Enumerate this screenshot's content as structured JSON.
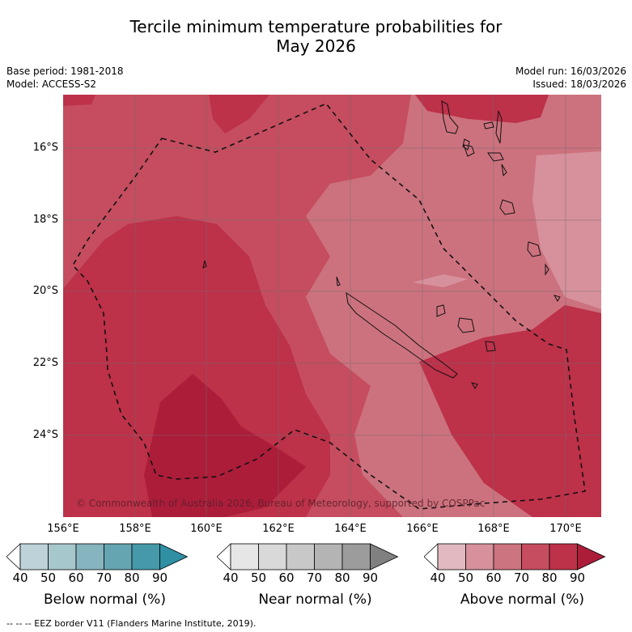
{
  "title": {
    "line1": "Tercile minimum temperature probabilities for",
    "line2": "May 2026"
  },
  "meta": {
    "base_period": "Base period: 1981-2018",
    "model": "Model: ACCESS-S2",
    "model_run": "Model run: 16/03/2026",
    "issued": "Issued: 18/03/2026"
  },
  "axes": {
    "lat_labels": [
      "16°S",
      "18°S",
      "20°S",
      "22°S",
      "24°S"
    ],
    "lon_labels": [
      "156°E",
      "158°E",
      "160°E",
      "162°E",
      "164°E",
      "166°E",
      "168°E",
      "170°E"
    ]
  },
  "copyright": "© Commonwealth of Australia 2026, Bureau of Meteorology, supported by COSPPac",
  "colorbars": [
    {
      "label": "Below normal (%)",
      "ticks": [
        "40",
        "50",
        "60",
        "70",
        "80",
        "90"
      ],
      "colors": [
        "#ffffff",
        "#bdd3d9",
        "#a6c7cc",
        "#87b5bf",
        "#65a4b1",
        "#4699a9",
        "#2f8fa3"
      ]
    },
    {
      "label": "Near normal (%)",
      "ticks": [
        "40",
        "50",
        "60",
        "70",
        "80",
        "90"
      ],
      "colors": [
        "#ffffff",
        "#e6e6e6",
        "#d9d9d9",
        "#c8c8c8",
        "#b4b4b4",
        "#9c9c9c",
        "#808080"
      ]
    },
    {
      "label": "Above normal (%)",
      "ticks": [
        "40",
        "50",
        "60",
        "70",
        "80",
        "90"
      ],
      "colors": [
        "#ffffff",
        "#e2b9c0",
        "#d7919c",
        "#cc7480",
        "#c54d5f",
        "#bd3149",
        "#ac1d3a"
      ]
    }
  ],
  "footnote": "--  --  -- EEZ border V11 (Flanders Marine Institute, 2019)."
}
